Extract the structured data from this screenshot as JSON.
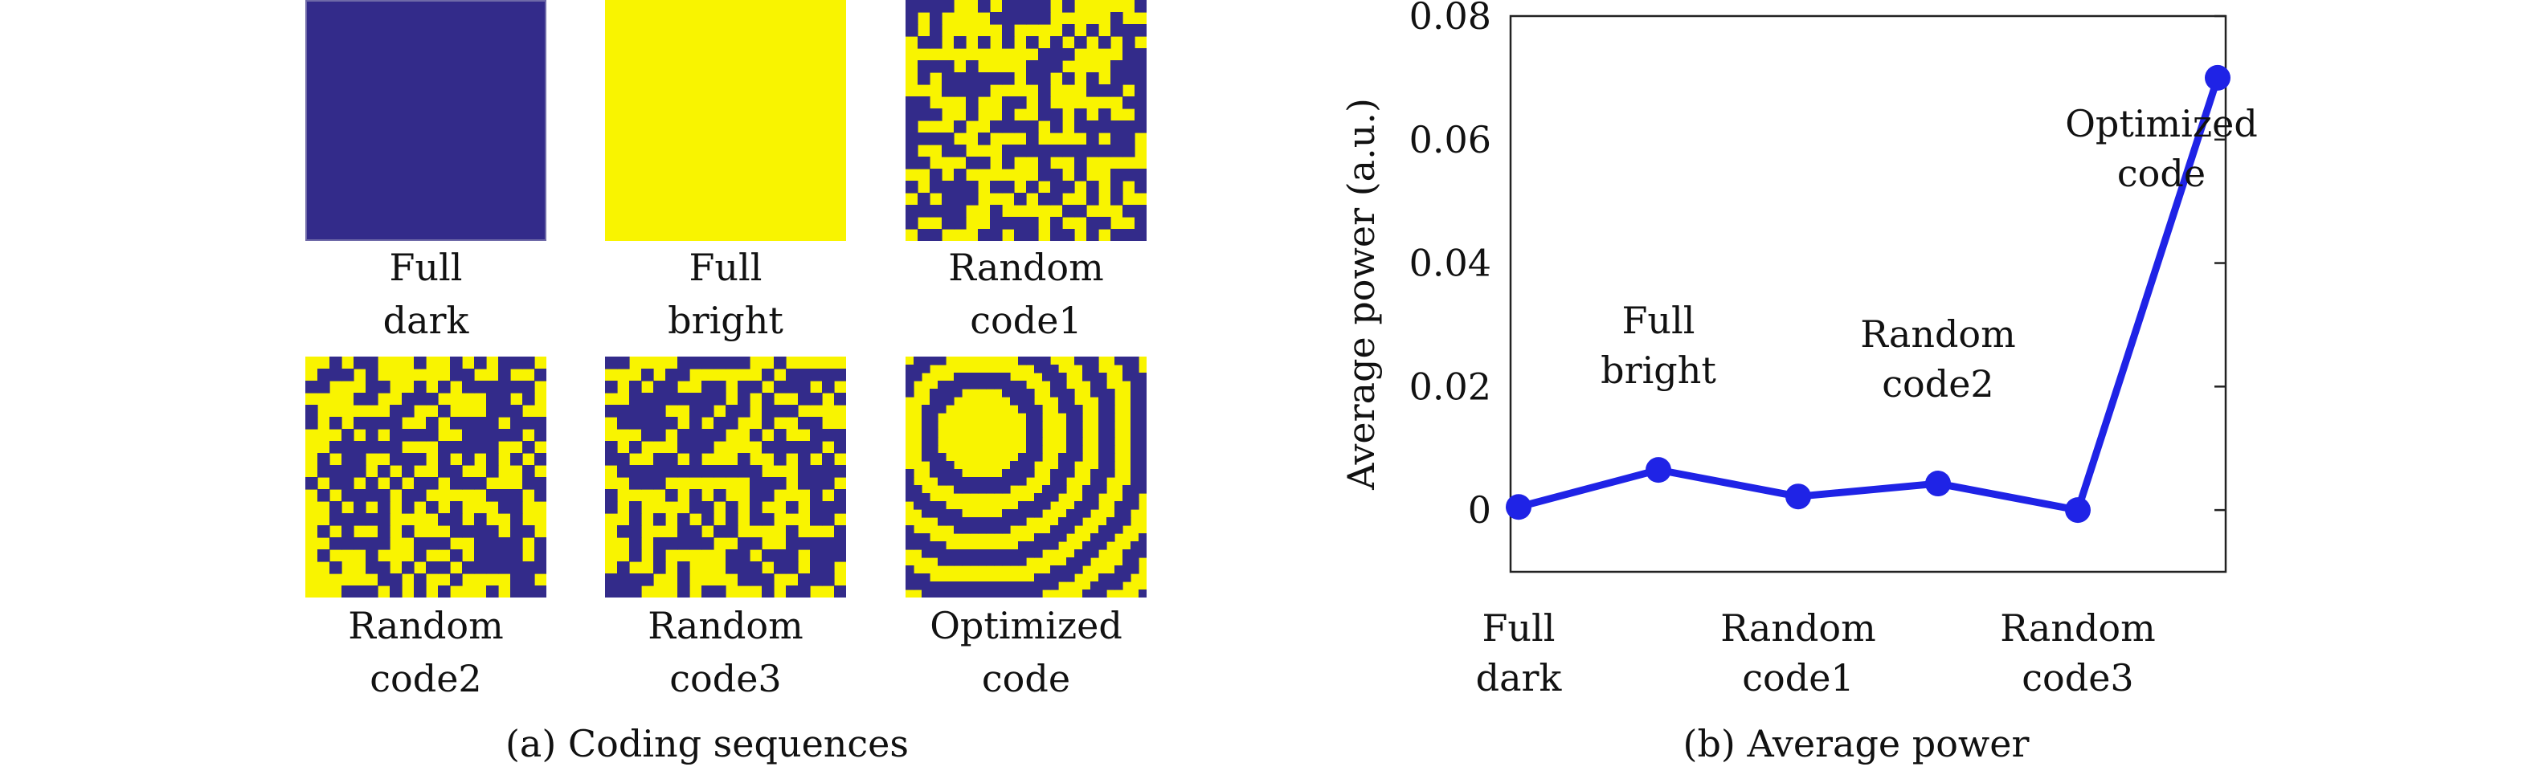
{
  "colors": {
    "dark": "#332b8a",
    "bright": "#f9f400",
    "line": "#1f23e6"
  },
  "panel_a": {
    "caption": "(a) Coding sequences",
    "tiles": [
      {
        "label": "Full\ndark",
        "pattern": "full-dark"
      },
      {
        "label": "Full\nbright",
        "pattern": "full-bright"
      },
      {
        "label": "Random\ncode1",
        "pattern": "random"
      },
      {
        "label": "Random\ncode2",
        "pattern": "random"
      },
      {
        "label": "Random\ncode3",
        "pattern": "random"
      },
      {
        "label": "Optimized\ncode",
        "pattern": "rings"
      }
    ]
  },
  "panel_b": {
    "caption": "(b) Average power"
  },
  "chart_data": {
    "type": "line",
    "title": "",
    "ylabel": "Average power (a.u.)",
    "xlabel": "",
    "categories": [
      "Full dark",
      "Full bright",
      "Random code1",
      "Random code2",
      "Random code3",
      "Optimized code"
    ],
    "shown_xtick_labels": [
      "Full\ndark",
      "",
      "Random\ncode1",
      "",
      "Random\ncode3",
      ""
    ],
    "series": [
      {
        "values": [
          0.0005,
          0.0065,
          0.0022,
          0.0043,
          0.0,
          0.07
        ]
      }
    ],
    "ylim": [
      -0.01,
      0.08
    ],
    "yticks": [
      0,
      0.02,
      0.04,
      0.06,
      0.08
    ],
    "ytick_labels": [
      "0",
      "0.02",
      "0.04",
      "0.06",
      "0.08"
    ],
    "annotations": [
      {
        "text": "Full\nbright",
        "category": "Full bright"
      },
      {
        "text": "Random\ncode2",
        "category": "Random code2"
      },
      {
        "text": "Optimized\ncode",
        "category": "Optimized code"
      }
    ],
    "grid": false,
    "legend": "none"
  }
}
